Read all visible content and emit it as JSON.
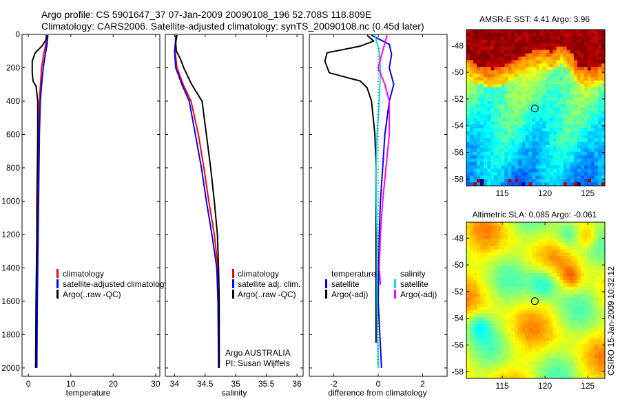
{
  "title_line1": "Argo profile: CS 5901647_37 07-Jan-2009 20090108_196 52.708S 118.809E",
  "title_line2": "Climatology: CARS2006. Satellite-adjusted climatology: synTS_20090108.nc (0.45d later)",
  "footer_text": "CSIRO 15-Jan-2009 10:32:12",
  "chart_data": [
    {
      "type": "line",
      "panel": "temperature",
      "xlabel": "temperature",
      "ylabel": "",
      "xlim": [
        -1.5,
        31
      ],
      "ylim": [
        0,
        2050
      ],
      "y_reversed": true,
      "xticks": [
        0,
        10,
        20,
        30
      ],
      "xtick_labels": [
        "0",
        "10",
        "20",
        "30"
      ],
      "yticks": [
        0,
        200,
        400,
        600,
        800,
        1000,
        1200,
        1400,
        1600,
        1800,
        2000
      ],
      "ytick_labels": [
        "0",
        "200",
        "400",
        "600",
        "800",
        "1000",
        "1200",
        "1400",
        "1600",
        "1800",
        "2000"
      ],
      "legend": [
        "climatology",
        "satellite-adjusted climatology",
        "Argo(..raw -QC)"
      ],
      "series": [
        {
          "name": "climatology",
          "color": "#ff0000",
          "points": [
            [
              4.2,
              5
            ],
            [
              4.1,
              60
            ],
            [
              3.6,
              120
            ],
            [
              3.1,
              200
            ],
            [
              2.9,
              280
            ],
            [
              2.6,
              400
            ],
            [
              2.5,
              600
            ],
            [
              2.4,
              800
            ],
            [
              2.3,
              1000
            ],
            [
              2.2,
              1200
            ],
            [
              2.0,
              1600
            ],
            [
              1.9,
              2000
            ]
          ]
        },
        {
          "name": "satellite-adjusted climatology",
          "color": "#0000ff",
          "points": [
            [
              4.6,
              5
            ],
            [
              4.4,
              60
            ],
            [
              4.0,
              120
            ],
            [
              3.5,
              200
            ],
            [
              3.2,
              280
            ],
            [
              2.8,
              400
            ],
            [
              2.6,
              600
            ],
            [
              2.5,
              800
            ],
            [
              2.4,
              1000
            ],
            [
              2.3,
              1200
            ],
            [
              2.1,
              1600
            ],
            [
              2.0,
              2000
            ]
          ]
        },
        {
          "name": "Argo(..raw -QC)",
          "color": "#000000",
          "points": [
            [
              4.3,
              5
            ],
            [
              4.2,
              30
            ],
            [
              3.2,
              70
            ],
            [
              1.6,
              110
            ],
            [
              0.9,
              160
            ],
            [
              0.9,
              230
            ],
            [
              1.1,
              280
            ],
            [
              1.8,
              310
            ],
            [
              2.2,
              400
            ],
            [
              2.2,
              600
            ],
            [
              2.1,
              800
            ],
            [
              2.0,
              1000
            ],
            [
              2.0,
              1200
            ],
            [
              1.8,
              1600
            ],
            [
              1.7,
              2000
            ]
          ]
        }
      ]
    },
    {
      "type": "line",
      "panel": "salinity",
      "xlabel": "salinity",
      "xlim": [
        33.85,
        36.1
      ],
      "ylim": [
        0,
        2050
      ],
      "y_reversed": true,
      "xticks": [
        34,
        34.5,
        35,
        35.5,
        36
      ],
      "xtick_labels": [
        "34",
        "34.5",
        "35",
        "35.5",
        "36"
      ],
      "legend": [
        "climatology",
        "satellite adj. clim.",
        "Argo(..raw -QC)"
      ],
      "annotation": [
        "Argo AUSTRALIA",
        "PI: Susan Wijffels"
      ],
      "series": [
        {
          "name": "climatology",
          "color": "#ff0000",
          "points": [
            [
              34.02,
              5
            ],
            [
              34.01,
              100
            ],
            [
              34.04,
              200
            ],
            [
              34.14,
              300
            ],
            [
              34.27,
              400
            ],
            [
              34.39,
              600
            ],
            [
              34.48,
              800
            ],
            [
              34.56,
              1000
            ],
            [
              34.65,
              1200
            ],
            [
              34.71,
              1400
            ],
            [
              34.72,
              1600
            ],
            [
              34.72,
              2000
            ]
          ]
        },
        {
          "name": "satellite adj. clim.",
          "color": "#0000ff",
          "points": [
            [
              34.03,
              5
            ],
            [
              34.0,
              100
            ],
            [
              34.02,
              200
            ],
            [
              34.12,
              300
            ],
            [
              34.24,
              400
            ],
            [
              34.34,
              600
            ],
            [
              34.44,
              800
            ],
            [
              34.52,
              1000
            ],
            [
              34.61,
              1200
            ],
            [
              34.69,
              1400
            ],
            [
              34.71,
              1600
            ],
            [
              34.72,
              2000
            ]
          ]
        },
        {
          "name": "Argo(..raw -QC)",
          "color": "#000000",
          "points": [
            [
              34.04,
              5
            ],
            [
              34.02,
              50
            ],
            [
              34.03,
              100
            ],
            [
              34.1,
              150
            ],
            [
              34.15,
              200
            ],
            [
              34.28,
              300
            ],
            [
              34.45,
              400
            ],
            [
              34.52,
              600
            ],
            [
              34.59,
              800
            ],
            [
              34.65,
              1000
            ],
            [
              34.7,
              1200
            ],
            [
              34.72,
              1400
            ],
            [
              34.73,
              1600
            ],
            [
              34.73,
              2000
            ]
          ]
        }
      ]
    },
    {
      "type": "line",
      "panel": "difference",
      "xlabel": "difference from climatology",
      "xlim": [
        -3.1,
        3.1
      ],
      "ylim": [
        0,
        2050
      ],
      "y_reversed": true,
      "xticks": [
        -2,
        0,
        2
      ],
      "xtick_labels": [
        "-2",
        "0",
        "2"
      ],
      "legend_left_header": "temperature",
      "legend_left": [
        "satellite",
        "Argo(-adj)"
      ],
      "legend_right_header": "salinity",
      "legend_right": [
        "satellite",
        "Argo(-adj)"
      ],
      "series": [
        {
          "name": "temperature satellite",
          "color": "#0000ff",
          "points": [
            [
              -0.3,
              5
            ],
            [
              0.5,
              60
            ],
            [
              0.6,
              120
            ],
            [
              0.5,
              200
            ],
            [
              0.7,
              300
            ],
            [
              0.5,
              400
            ],
            [
              0.3,
              600
            ],
            [
              0.2,
              800
            ],
            [
              0.1,
              1000
            ],
            [
              0.05,
              1200
            ],
            [
              0.0,
              1600
            ],
            [
              0.15,
              2000
            ]
          ]
        },
        {
          "name": "temperature Argo(-adj)",
          "color": "#000000",
          "points": [
            [
              -0.5,
              5
            ],
            [
              -0.2,
              40
            ],
            [
              -0.8,
              70
            ],
            [
              -2.3,
              110
            ],
            [
              -2.4,
              160
            ],
            [
              -2.2,
              230
            ],
            [
              -0.8,
              280
            ],
            [
              -0.5,
              320
            ],
            [
              -0.3,
              400
            ],
            [
              -0.15,
              600
            ],
            [
              -0.1,
              800
            ],
            [
              -0.1,
              1000
            ],
            [
              -0.1,
              1200
            ],
            [
              -0.1,
              1600
            ],
            [
              -0.1,
              1850
            ]
          ]
        },
        {
          "name": "salinity satellite",
          "color": "#00e0e0",
          "points": [
            [
              -0.15,
              5
            ],
            [
              0.05,
              100
            ],
            [
              0.1,
              200
            ],
            [
              0.05,
              400
            ],
            [
              -0.05,
              600
            ],
            [
              -0.1,
              800
            ],
            [
              -0.08,
              1000
            ],
            [
              -0.05,
              1200
            ],
            [
              -0.05,
              1600
            ],
            [
              0.0,
              2000
            ]
          ]
        },
        {
          "name": "salinity Argo(-adj)",
          "color": "#ff00ff",
          "points": [
            [
              0.4,
              5
            ],
            [
              0.2,
              100
            ],
            [
              0.0,
              200
            ],
            [
              0.3,
              300
            ],
            [
              0.5,
              400
            ],
            [
              0.5,
              600
            ],
            [
              0.35,
              800
            ],
            [
              0.2,
              1000
            ],
            [
              0.1,
              1200
            ],
            [
              0.05,
              1400
            ],
            [
              0.1,
              1500
            ]
          ]
        }
      ]
    },
    {
      "type": "heatmap",
      "panel": "sst-map",
      "title": "AMSR-E SST: 4.41  Argo: 3.96",
      "xlim": [
        110.8,
        127
      ],
      "ylim": [
        -58.5,
        -46.8
      ],
      "xticks": [
        115,
        120,
        125
      ],
      "yticks": [
        -48,
        -50,
        -52,
        -54,
        -56,
        -58
      ],
      "xtick_labels": [
        "115",
        "120",
        "125"
      ],
      "ytick_labels": [
        "-48",
        "-50",
        "-52",
        "-54",
        "-56",
        "-58"
      ],
      "marker": [
        118.81,
        -52.71
      ]
    },
    {
      "type": "heatmap",
      "panel": "sla-map",
      "title": "Altimetric SLA: 0.085  Argo: -0.061",
      "xlim": [
        110.8,
        127
      ],
      "ylim": [
        -58.5,
        -46.8
      ],
      "xticks": [
        115,
        120,
        125
      ],
      "yticks": [
        -48,
        -50,
        -52,
        -54,
        -56,
        -58
      ],
      "xtick_labels": [
        "115",
        "120",
        "125"
      ],
      "ytick_labels": [
        "-48",
        "-50",
        "-52",
        "-54",
        "-56",
        "-58"
      ],
      "marker": [
        118.81,
        -52.71
      ]
    }
  ]
}
